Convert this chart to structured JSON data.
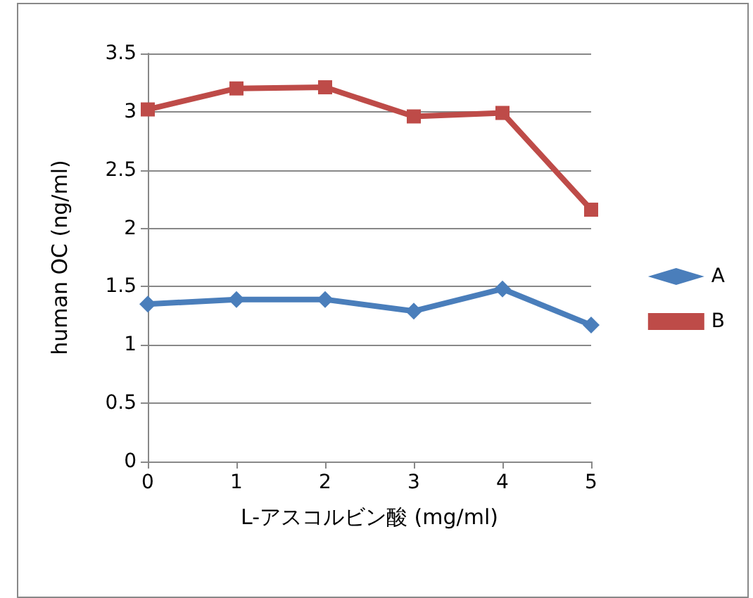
{
  "chart_data": {
    "type": "line",
    "xlabel": "L-アスコルビン酸 (mg/ml)",
    "ylabel": "human OC (ng/ml)",
    "categories": [
      "0",
      "1",
      "2",
      "3",
      "4",
      "5"
    ],
    "series": [
      {
        "name": "A",
        "color": "#4a7ebb",
        "marker": "diamond",
        "values": [
          1.35,
          1.39,
          1.39,
          1.29,
          1.48,
          1.17
        ]
      },
      {
        "name": "B",
        "color": "#be4b48",
        "marker": "square",
        "values": [
          3.02,
          3.2,
          3.21,
          2.96,
          2.99,
          2.16
        ]
      }
    ],
    "ylim": [
      0,
      3.5
    ],
    "yticks": [
      0,
      0.5,
      1,
      1.5,
      2,
      2.5,
      3,
      3.5
    ],
    "grid": "y",
    "legend": "right",
    "line_style": "solid"
  }
}
